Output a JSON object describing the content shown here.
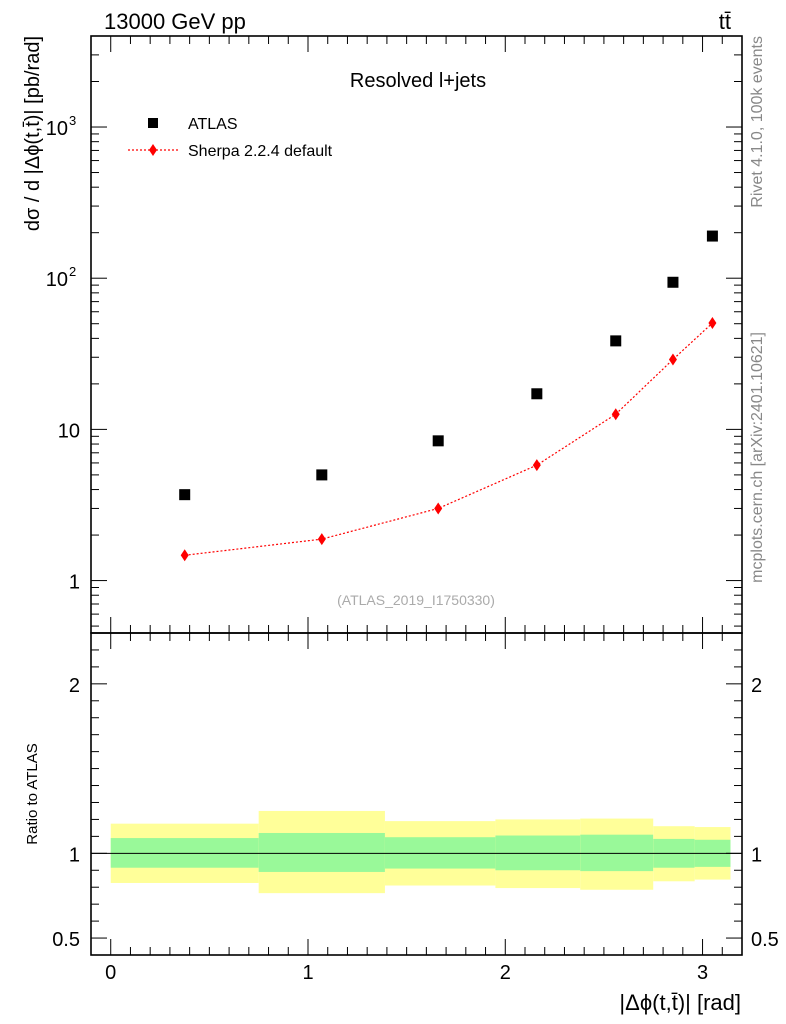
{
  "header": {
    "energy_label": "13000 GeV pp",
    "process_label": "tt̄"
  },
  "side_labels": {
    "rivet": "Rivet 4.1.0,  100k events",
    "mcplots": "mcplots.cern.ch [arXiv:2401.10621]"
  },
  "chart_data": [
    {
      "type": "scatter",
      "title": "Resolved l+jets",
      "analysis_label": "(ATLAS_2019_I1750330)",
      "ylabel": "dσ / d |Δϕ(t,t̄)| [pb/rad]",
      "xlabel": "",
      "yscale": "log",
      "xlim": [
        -0.1,
        3.2
      ],
      "ylim": [
        0.45,
        4000
      ],
      "ytick_labels": [
        {
          "value": 1,
          "label": "1"
        },
        {
          "value": 10,
          "label": "10"
        },
        {
          "value": 100,
          "label": "10",
          "exp": "2"
        },
        {
          "value": 1000,
          "label": "10",
          "exp": "3"
        }
      ],
      "legend": [
        {
          "name": "ATLAS",
          "marker": "square",
          "color": "#000000"
        },
        {
          "name": "Sherpa 2.2.4 default",
          "marker": "diamond",
          "color": "#ff0000",
          "linestyle": "dotted"
        }
      ],
      "series": [
        {
          "name": "ATLAS",
          "x": [
            0.375,
            1.07,
            1.66,
            2.16,
            2.56,
            2.85,
            3.05
          ],
          "y": [
            3.7,
            5.0,
            8.4,
            17.2,
            38.5,
            94,
            190
          ]
        },
        {
          "name": "Sherpa 2.2.4 default",
          "x": [
            0.375,
            1.07,
            1.66,
            2.16,
            2.56,
            2.85,
            3.05
          ],
          "y": [
            1.47,
            1.88,
            3.0,
            5.8,
            12.6,
            29.0,
            50.5
          ]
        }
      ]
    },
    {
      "type": "area",
      "title": "",
      "xlabel": "|Δϕ(t,t̄)| [rad]",
      "ylabel": "Ratio to ATLAS",
      "xlim": [
        -0.1,
        3.2
      ],
      "ylim": [
        0.4,
        2.3
      ],
      "ytick_labels": [
        {
          "value": 0.5,
          "label": "0.5"
        },
        {
          "value": 1,
          "label": "1"
        },
        {
          "value": 2,
          "label": "2"
        }
      ],
      "xtick_labels": [
        {
          "value": 0,
          "label": "0"
        },
        {
          "value": 1,
          "label": "1"
        },
        {
          "value": 2,
          "label": "2"
        },
        {
          "value": 3,
          "label": "3"
        }
      ],
      "reference_line": 1.0,
      "bins": [
        {
          "lo": 0.0,
          "hi": 0.75,
          "stat_lo": 0.915,
          "stat_hi": 1.09,
          "tot_lo": 0.825,
          "tot_hi": 1.175
        },
        {
          "lo": 0.75,
          "hi": 1.39,
          "stat_lo": 0.89,
          "stat_hi": 1.12,
          "tot_lo": 0.765,
          "tot_hi": 1.25
        },
        {
          "lo": 1.39,
          "hi": 1.95,
          "stat_lo": 0.91,
          "stat_hi": 1.095,
          "tot_lo": 0.81,
          "tot_hi": 1.19
        },
        {
          "lo": 1.95,
          "hi": 2.38,
          "stat_lo": 0.9,
          "stat_hi": 1.105,
          "tot_lo": 0.795,
          "tot_hi": 1.2
        },
        {
          "lo": 2.38,
          "hi": 2.75,
          "stat_lo": 0.895,
          "stat_hi": 1.11,
          "tot_lo": 0.785,
          "tot_hi": 1.205
        },
        {
          "lo": 2.75,
          "hi": 2.96,
          "stat_lo": 0.915,
          "stat_hi": 1.085,
          "tot_lo": 0.835,
          "tot_hi": 1.16
        },
        {
          "lo": 2.96,
          "hi": 3.1416,
          "stat_lo": 0.92,
          "stat_hi": 1.08,
          "tot_lo": 0.845,
          "tot_hi": 1.155
        }
      ],
      "colors": {
        "stat_band": "#99f999",
        "total_band": "#ffff99",
        "line": "#000000"
      }
    }
  ]
}
